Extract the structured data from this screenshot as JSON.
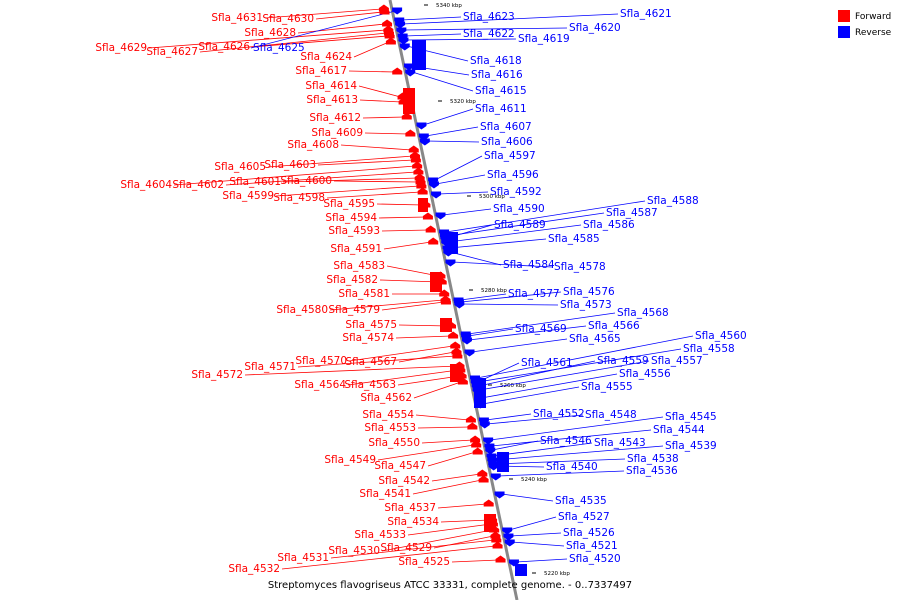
{
  "colors": {
    "forward": "#ff0000",
    "reverse": "#0000ff",
    "backbone": "#888888"
  },
  "legend": [
    {
      "label": "Forward",
      "color": "#ff0000"
    },
    {
      "label": "Reverse",
      "color": "#0000ff"
    }
  ],
  "caption": "Streptomyces flavogriseus ATCC 33331, complete genome. - 0..7337497",
  "kbp_ticks": [
    "5340 kbp",
    "5320 kbp",
    "5300 kbp",
    "5280 kbp",
    "5260 kbp",
    "5240 kbp",
    "5220 kbp"
  ],
  "forward_genes": [
    "Sfla_4631",
    "Sfla_4630",
    "Sfla_4628",
    "Sfla_4629",
    "Sfla_4627",
    "Sfla_4626",
    "Sfla_4624",
    "Sfla_4617",
    "Sfla_4614",
    "Sfla_4613",
    "Sfla_4612",
    "Sfla_4609",
    "Sfla_4608",
    "Sfla_4605",
    "Sfla_4603",
    "Sfla_4604",
    "Sfla_4602",
    "Sfla_4601",
    "Sfla_4600",
    "Sfla_4599",
    "Sfla_4598",
    "Sfla_4595",
    "Sfla_4594",
    "Sfla_4593",
    "Sfla_4591",
    "Sfla_4583",
    "Sfla_4582",
    "Sfla_4581",
    "Sfla_4580",
    "Sfla_4579",
    "Sfla_4575",
    "Sfla_4574",
    "Sfla_4570",
    "Sfla_4567",
    "Sfla_4571",
    "Sfla_4572",
    "Sfla_4564",
    "Sfla_4563",
    "Sfla_4562",
    "Sfla_4554",
    "Sfla_4553",
    "Sfla_4550",
    "Sfla_4549",
    "Sfla_4547",
    "Sfla_4542",
    "Sfla_4541",
    "Sfla_4537",
    "Sfla_4534",
    "Sfla_4533",
    "Sfla_4530",
    "Sfla_4529",
    "Sfla_4531",
    "Sfla_4532",
    "Sfla_4525"
  ],
  "reverse_genes": [
    "Sfla_4621",
    "Sfla_4623",
    "Sfla_4620",
    "Sfla_4622",
    "Sfla_4619",
    "Sfla_4625",
    "Sfla_4618",
    "Sfla_4616",
    "Sfla_4615",
    "Sfla_4611",
    "Sfla_4607",
    "Sfla_4606",
    "Sfla_4597",
    "Sfla_4596",
    "Sfla_4592",
    "Sfla_4588",
    "Sfla_4590",
    "Sfla_4587",
    "Sfla_4589",
    "Sfla_4586",
    "Sfla_4585",
    "Sfla_4584",
    "Sfla_4578",
    "Sfla_4577",
    "Sfla_4576",
    "Sfla_4573",
    "Sfla_4568",
    "Sfla_4569",
    "Sfla_4566",
    "Sfla_4565",
    "Sfla_4560",
    "Sfla_4558",
    "Sfla_4561",
    "Sfla_4559",
    "Sfla_4557",
    "Sfla_4556",
    "Sfla_4555",
    "Sfla_4552",
    "Sfla_4548",
    "Sfla_4545",
    "Sfla_4544",
    "Sfla_4546",
    "Sfla_4543",
    "Sfla_4539",
    "Sfla_4538",
    "Sfla_4540",
    "Sfla_4536",
    "Sfla_4535",
    "Sfla_4527",
    "Sfla_4526",
    "Sfla_4521",
    "Sfla_4520"
  ]
}
